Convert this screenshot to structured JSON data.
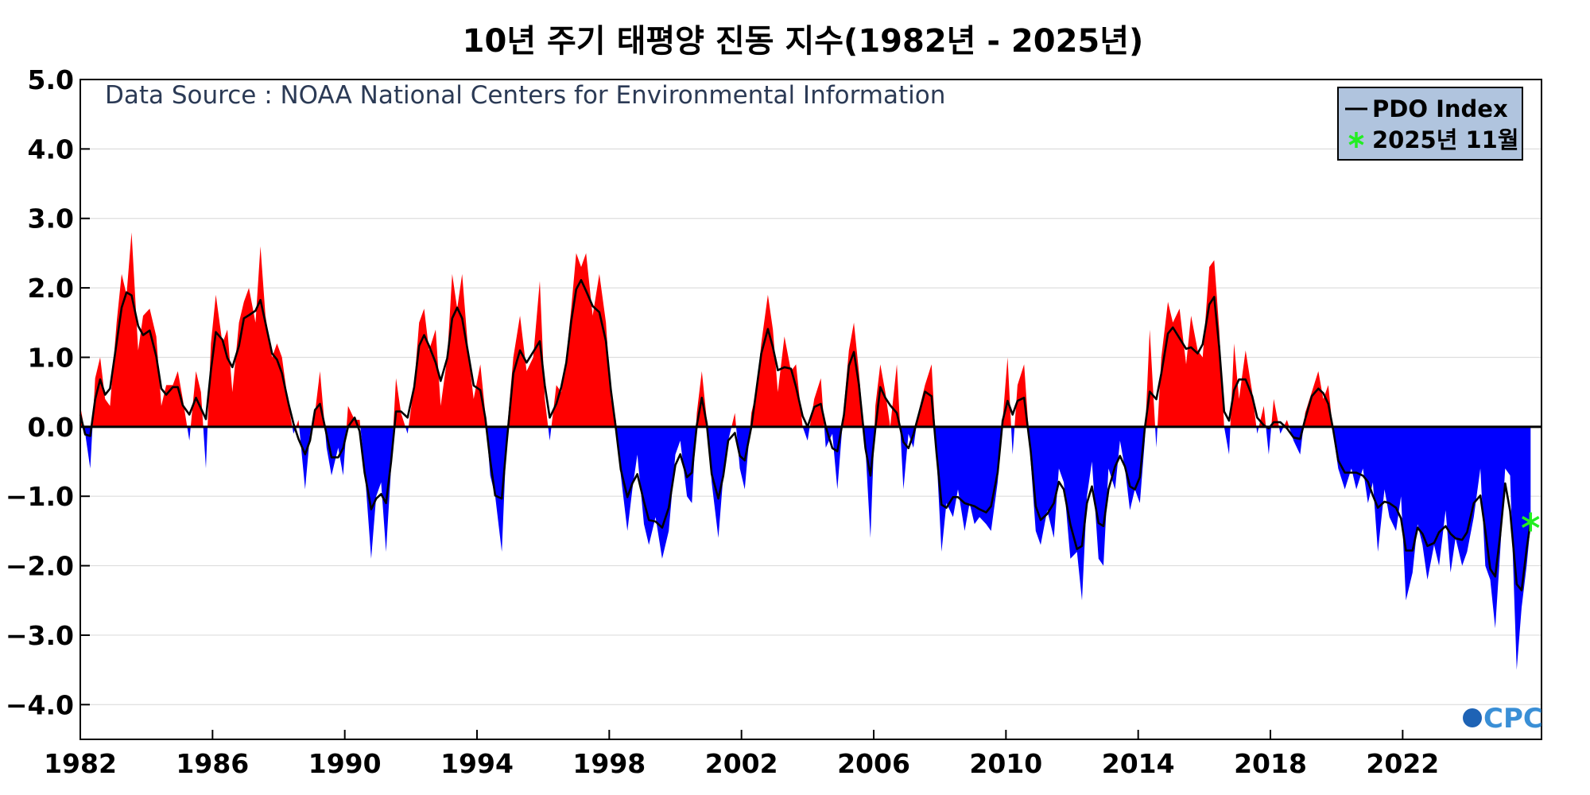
{
  "chart_data": {
    "type": "area",
    "title": "10년 주기 태평양 진동 지수(1982년 - 2025년)",
    "source_note": "Data Source : NOAA National Centers for Environmental Information",
    "logo_text": "CPC",
    "xlim": [
      1982.0,
      2026.2
    ],
    "ylim": [
      -4.5,
      5.0
    ],
    "x_ticks": [
      1982,
      1986,
      1990,
      1994,
      1998,
      2002,
      2006,
      2010,
      2014,
      2018,
      2022
    ],
    "y_ticks": [
      5.0,
      4.0,
      3.0,
      2.0,
      1.0,
      0.0,
      -1.0,
      -2.0,
      -3.0,
      -4.0
    ],
    "y_tick_labels": [
      "5.0",
      "4.0",
      "3.0",
      "2.0",
      "1.0",
      "0.0",
      "−1.0",
      "−2.0",
      "−3.0",
      "−4.0"
    ],
    "grid": true,
    "legend_position": "top-right",
    "colors": {
      "positive": "#ff0000",
      "negative": "#0000ff",
      "line": "#000000",
      "marker": "#22ee22",
      "grid": "#dddddd",
      "legend_bg": "#b0c4de"
    },
    "series": [
      {
        "name": "PDO Index",
        "points": [
          [
            1982.0,
            0.3
          ],
          [
            1982.15,
            -0.1
          ],
          [
            1982.3,
            -0.6
          ],
          [
            1982.45,
            0.7
          ],
          [
            1982.6,
            1.0
          ],
          [
            1982.75,
            0.4
          ],
          [
            1982.9,
            0.3
          ],
          [
            1983.1,
            1.5
          ],
          [
            1983.25,
            2.2
          ],
          [
            1983.4,
            1.9
          ],
          [
            1983.55,
            2.8
          ],
          [
            1983.75,
            1.1
          ],
          [
            1983.9,
            1.6
          ],
          [
            1984.1,
            1.7
          ],
          [
            1984.3,
            1.3
          ],
          [
            1984.45,
            0.3
          ],
          [
            1984.6,
            0.6
          ],
          [
            1984.8,
            0.6
          ],
          [
            1984.95,
            0.8
          ],
          [
            1985.1,
            0.4
          ],
          [
            1985.3,
            -0.2
          ],
          [
            1985.5,
            0.8
          ],
          [
            1985.65,
            0.5
          ],
          [
            1985.8,
            -0.6
          ],
          [
            1985.95,
            1.2
          ],
          [
            1986.1,
            1.9
          ],
          [
            1986.3,
            1.2
          ],
          [
            1986.45,
            1.4
          ],
          [
            1986.6,
            0.5
          ],
          [
            1986.8,
            1.5
          ],
          [
            1986.95,
            1.8
          ],
          [
            1987.1,
            2.0
          ],
          [
            1987.3,
            1.5
          ],
          [
            1987.45,
            2.6
          ],
          [
            1987.6,
            1.6
          ],
          [
            1987.8,
            1.0
          ],
          [
            1987.95,
            1.2
          ],
          [
            1988.1,
            1.0
          ],
          [
            1988.3,
            0.3
          ],
          [
            1988.45,
            -0.1
          ],
          [
            1988.6,
            0.1
          ],
          [
            1988.8,
            -0.9
          ],
          [
            1988.95,
            -0.1
          ],
          [
            1989.1,
            0.2
          ],
          [
            1989.25,
            0.8
          ],
          [
            1989.45,
            -0.3
          ],
          [
            1989.6,
            -0.7
          ],
          [
            1989.8,
            -0.3
          ],
          [
            1989.95,
            -0.7
          ],
          [
            1990.1,
            0.3
          ],
          [
            1990.3,
            0.1
          ],
          [
            1990.45,
            0.1
          ],
          [
            1990.6,
            -0.6
          ],
          [
            1990.8,
            -1.9
          ],
          [
            1990.95,
            -1.0
          ],
          [
            1991.1,
            -0.8
          ],
          [
            1991.25,
            -1.8
          ],
          [
            1991.4,
            -0.6
          ],
          [
            1991.55,
            0.7
          ],
          [
            1991.7,
            0.2
          ],
          [
            1991.9,
            -0.1
          ],
          [
            1992.1,
            0.6
          ],
          [
            1992.25,
            1.5
          ],
          [
            1992.4,
            1.7
          ],
          [
            1992.55,
            1.1
          ],
          [
            1992.75,
            1.4
          ],
          [
            1992.9,
            0.3
          ],
          [
            1993.1,
            1.0
          ],
          [
            1993.25,
            2.2
          ],
          [
            1993.4,
            1.7
          ],
          [
            1993.55,
            2.2
          ],
          [
            1993.75,
            1.0
          ],
          [
            1993.9,
            0.4
          ],
          [
            1994.1,
            0.9
          ],
          [
            1994.25,
            0.2
          ],
          [
            1994.4,
            -0.7
          ],
          [
            1994.55,
            -1.0
          ],
          [
            1994.75,
            -1.8
          ],
          [
            1994.9,
            -0.1
          ],
          [
            1995.1,
            1.0
          ],
          [
            1995.3,
            1.6
          ],
          [
            1995.5,
            0.8
          ],
          [
            1995.7,
            1.0
          ],
          [
            1995.9,
            2.1
          ],
          [
            1996.05,
            0.4
          ],
          [
            1996.2,
            -0.2
          ],
          [
            1996.4,
            0.6
          ],
          [
            1996.55,
            0.5
          ],
          [
            1996.7,
            1.0
          ],
          [
            1996.85,
            1.7
          ],
          [
            1997.0,
            2.5
          ],
          [
            1997.15,
            2.3
          ],
          [
            1997.3,
            2.5
          ],
          [
            1997.5,
            1.6
          ],
          [
            1997.7,
            2.2
          ],
          [
            1997.9,
            1.5
          ],
          [
            1998.05,
            0.4
          ],
          [
            1998.2,
            0.1
          ],
          [
            1998.35,
            -0.7
          ],
          [
            1998.55,
            -1.5
          ],
          [
            1998.7,
            -0.9
          ],
          [
            1998.85,
            -0.4
          ],
          [
            1999.05,
            -1.4
          ],
          [
            1999.2,
            -1.7
          ],
          [
            1999.4,
            -1.3
          ],
          [
            1999.6,
            -1.9
          ],
          [
            1999.8,
            -1.5
          ],
          [
            2000.0,
            -0.4
          ],
          [
            2000.15,
            -0.2
          ],
          [
            2000.35,
            -1.0
          ],
          [
            2000.5,
            -1.1
          ],
          [
            2000.65,
            0.2
          ],
          [
            2000.8,
            0.8
          ],
          [
            2000.95,
            0.1
          ],
          [
            2001.1,
            -0.8
          ],
          [
            2001.3,
            -1.6
          ],
          [
            2001.45,
            -0.7
          ],
          [
            2001.6,
            -0.2
          ],
          [
            2001.8,
            0.2
          ],
          [
            2001.95,
            -0.6
          ],
          [
            2002.1,
            -0.9
          ],
          [
            2002.3,
            0.2
          ],
          [
            2002.45,
            0.5
          ],
          [
            2002.6,
            1.2
          ],
          [
            2002.8,
            1.9
          ],
          [
            2002.95,
            1.4
          ],
          [
            2003.1,
            0.5
          ],
          [
            2003.3,
            1.3
          ],
          [
            2003.5,
            0.8
          ],
          [
            2003.65,
            0.9
          ],
          [
            2003.85,
            0.0
          ],
          [
            2004.0,
            -0.2
          ],
          [
            2004.2,
            0.4
          ],
          [
            2004.4,
            0.7
          ],
          [
            2004.55,
            -0.3
          ],
          [
            2004.75,
            -0.1
          ],
          [
            2004.9,
            -0.9
          ],
          [
            2005.1,
            0.3
          ],
          [
            2005.25,
            1.1
          ],
          [
            2005.4,
            1.5
          ],
          [
            2005.55,
            0.8
          ],
          [
            2005.75,
            -0.3
          ],
          [
            2005.9,
            -1.6
          ],
          [
            2006.05,
            0.3
          ],
          [
            2006.2,
            0.9
          ],
          [
            2006.35,
            0.5
          ],
          [
            2006.5,
            0.0
          ],
          [
            2006.7,
            0.9
          ],
          [
            2006.9,
            -0.9
          ],
          [
            2007.05,
            -0.1
          ],
          [
            2007.2,
            -0.3
          ],
          [
            2007.35,
            0.2
          ],
          [
            2007.55,
            0.6
          ],
          [
            2007.75,
            0.9
          ],
          [
            2007.9,
            -0.4
          ],
          [
            2008.05,
            -1.8
          ],
          [
            2008.2,
            -1.1
          ],
          [
            2008.4,
            -1.3
          ],
          [
            2008.55,
            -0.9
          ],
          [
            2008.75,
            -1.5
          ],
          [
            2008.9,
            -1.1
          ],
          [
            2009.05,
            -1.4
          ],
          [
            2009.2,
            -1.3
          ],
          [
            2009.4,
            -1.4
          ],
          [
            2009.55,
            -1.5
          ],
          [
            2009.75,
            -0.8
          ],
          [
            2009.9,
            0.1
          ],
          [
            2010.05,
            1.0
          ],
          [
            2010.2,
            -0.4
          ],
          [
            2010.35,
            0.6
          ],
          [
            2010.55,
            0.9
          ],
          [
            2010.75,
            -0.5
          ],
          [
            2010.9,
            -1.5
          ],
          [
            2011.05,
            -1.7
          ],
          [
            2011.25,
            -1.2
          ],
          [
            2011.45,
            -1.6
          ],
          [
            2011.6,
            -0.6
          ],
          [
            2011.75,
            -0.8
          ],
          [
            2011.95,
            -1.9
          ],
          [
            2012.15,
            -1.8
          ],
          [
            2012.3,
            -2.5
          ],
          [
            2012.45,
            -1.0
          ],
          [
            2012.6,
            -0.5
          ],
          [
            2012.8,
            -1.9
          ],
          [
            2012.95,
            -2.0
          ],
          [
            2013.1,
            -0.6
          ],
          [
            2013.3,
            -0.9
          ],
          [
            2013.45,
            -0.2
          ],
          [
            2013.6,
            -0.6
          ],
          [
            2013.75,
            -1.2
          ],
          [
            2013.9,
            -0.9
          ],
          [
            2014.05,
            -1.1
          ],
          [
            2014.2,
            -0.2
          ],
          [
            2014.35,
            1.4
          ],
          [
            2014.55,
            -0.3
          ],
          [
            2014.7,
            1.0
          ],
          [
            2014.9,
            1.8
          ],
          [
            2015.05,
            1.5
          ],
          [
            2015.25,
            1.7
          ],
          [
            2015.45,
            0.9
          ],
          [
            2015.6,
            1.6
          ],
          [
            2015.8,
            1.1
          ],
          [
            2015.95,
            1.0
          ],
          [
            2016.15,
            2.3
          ],
          [
            2016.3,
            2.4
          ],
          [
            2016.45,
            1.4
          ],
          [
            2016.6,
            0.0
          ],
          [
            2016.75,
            -0.4
          ],
          [
            2016.9,
            1.2
          ],
          [
            2017.05,
            0.4
          ],
          [
            2017.25,
            1.1
          ],
          [
            2017.45,
            0.5
          ],
          [
            2017.6,
            -0.1
          ],
          [
            2017.8,
            0.3
          ],
          [
            2017.95,
            -0.4
          ],
          [
            2018.1,
            0.4
          ],
          [
            2018.3,
            -0.1
          ],
          [
            2018.5,
            0.1
          ],
          [
            2018.7,
            -0.2
          ],
          [
            2018.9,
            -0.4
          ],
          [
            2019.05,
            0.2
          ],
          [
            2019.25,
            0.5
          ],
          [
            2019.45,
            0.8
          ],
          [
            2019.6,
            0.4
          ],
          [
            2019.75,
            0.6
          ],
          [
            2019.9,
            -0.1
          ],
          [
            2020.05,
            -0.6
          ],
          [
            2020.25,
            -0.9
          ],
          [
            2020.45,
            -0.6
          ],
          [
            2020.6,
            -0.9
          ],
          [
            2020.8,
            -0.6
          ],
          [
            2020.95,
            -1.1
          ],
          [
            2021.1,
            -0.8
          ],
          [
            2021.25,
            -1.8
          ],
          [
            2021.45,
            -0.9
          ],
          [
            2021.6,
            -1.3
          ],
          [
            2021.8,
            -1.5
          ],
          [
            2021.95,
            -1.0
          ],
          [
            2022.1,
            -2.5
          ],
          [
            2022.3,
            -2.1
          ],
          [
            2022.45,
            -1.4
          ],
          [
            2022.6,
            -1.7
          ],
          [
            2022.75,
            -2.2
          ],
          [
            2022.95,
            -1.7
          ],
          [
            2023.1,
            -2.0
          ],
          [
            2023.3,
            -1.2
          ],
          [
            2023.45,
            -2.1
          ],
          [
            2023.6,
            -1.6
          ],
          [
            2023.8,
            -2.0
          ],
          [
            2023.95,
            -1.8
          ],
          [
            2024.15,
            -1.3
          ],
          [
            2024.35,
            -0.6
          ],
          [
            2024.5,
            -2.0
          ],
          [
            2024.65,
            -2.2
          ],
          [
            2024.8,
            -2.9
          ],
          [
            2024.95,
            -1.8
          ],
          [
            2025.1,
            -0.6
          ],
          [
            2025.25,
            -0.7
          ],
          [
            2025.45,
            -3.5
          ],
          [
            2025.6,
            -2.6
          ],
          [
            2025.75,
            -2.0
          ],
          [
            2025.87,
            -1.4
          ]
        ]
      }
    ],
    "highlight": {
      "label": "2025년 11월",
      "x": 2025.87,
      "y": -1.37
    }
  }
}
